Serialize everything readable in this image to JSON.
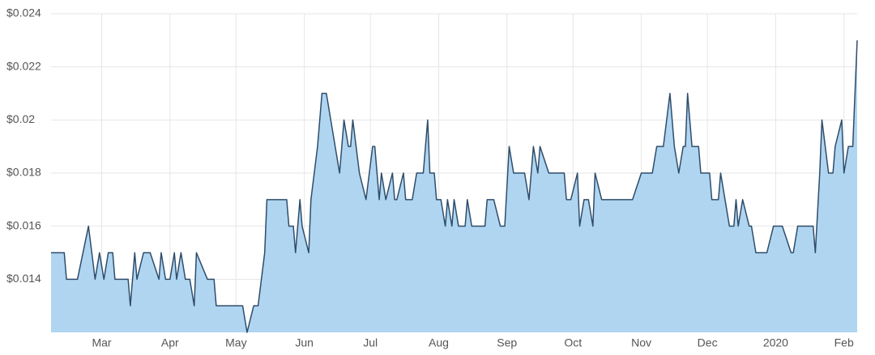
{
  "chart_data": {
    "type": "area",
    "x": [
      0,
      6,
      7,
      12,
      17,
      20,
      22,
      24,
      26,
      28,
      29,
      35,
      36,
      38,
      39,
      42,
      45,
      49,
      50,
      52,
      54,
      56,
      57,
      59,
      61,
      63,
      65,
      66,
      71,
      74,
      75,
      87,
      89,
      92,
      94,
      97,
      98,
      107,
      108,
      110,
      111,
      113,
      114,
      117,
      118,
      121,
      123,
      125,
      127,
      131,
      133,
      135,
      136,
      137,
      140,
      143,
      146,
      147,
      149,
      150,
      152,
      155,
      156,
      157,
      160,
      161,
      164,
      166,
      169,
      171,
      172,
      174,
      175,
      177,
      179,
      180,
      182,
      183,
      185,
      188,
      189,
      191,
      197,
      198,
      201,
      204,
      206,
      208,
      210,
      215,
      217,
      219,
      221,
      222,
      226,
      233,
      234,
      236,
      239,
      240,
      242,
      244,
      246,
      247,
      250,
      264,
      268,
      273,
      275,
      278,
      281,
      283,
      285,
      287,
      288,
      289,
      291,
      294,
      295,
      299,
      300,
      303,
      304,
      308,
      310,
      311,
      312,
      314,
      317,
      318,
      320,
      325,
      328,
      332,
      336,
      337,
      339,
      346,
      347,
      349,
      350,
      353,
      355,
      356,
      359,
      360,
      362,
      364,
      366
    ],
    "values": [
      0.015,
      0.015,
      0.014,
      0.014,
      0.016,
      0.014,
      0.015,
      0.014,
      0.015,
      0.015,
      0.014,
      0.014,
      0.013,
      0.015,
      0.014,
      0.015,
      0.015,
      0.014,
      0.015,
      0.014,
      0.014,
      0.015,
      0.014,
      0.015,
      0.014,
      0.014,
      0.013,
      0.015,
      0.014,
      0.014,
      0.013,
      0.013,
      0.012,
      0.013,
      0.013,
      0.015,
      0.017,
      0.017,
      0.016,
      0.016,
      0.015,
      0.017,
      0.016,
      0.015,
      0.017,
      0.019,
      0.021,
      0.021,
      0.02,
      0.018,
      0.02,
      0.019,
      0.019,
      0.02,
      0.018,
      0.017,
      0.019,
      0.019,
      0.017,
      0.018,
      0.017,
      0.018,
      0.017,
      0.017,
      0.018,
      0.017,
      0.017,
      0.018,
      0.018,
      0.02,
      0.018,
      0.018,
      0.017,
      0.017,
      0.016,
      0.017,
      0.016,
      0.017,
      0.016,
      0.016,
      0.017,
      0.016,
      0.016,
      0.017,
      0.017,
      0.016,
      0.016,
      0.019,
      0.018,
      0.018,
      0.017,
      0.019,
      0.018,
      0.019,
      0.018,
      0.018,
      0.017,
      0.017,
      0.018,
      0.016,
      0.017,
      0.017,
      0.016,
      0.018,
      0.017,
      0.017,
      0.018,
      0.018,
      0.019,
      0.019,
      0.021,
      0.019,
      0.018,
      0.019,
      0.019,
      0.021,
      0.019,
      0.019,
      0.018,
      0.018,
      0.017,
      0.017,
      0.018,
      0.016,
      0.016,
      0.017,
      0.016,
      0.017,
      0.016,
      0.016,
      0.015,
      0.015,
      0.016,
      0.016,
      0.015,
      0.015,
      0.016,
      0.016,
      0.015,
      0.018,
      0.02,
      0.018,
      0.018,
      0.019,
      0.02,
      0.018,
      0.019,
      0.019,
      0.023
    ],
    "color": "#2e4d6b",
    "fill": "#b0d5f1",
    "xlim": [
      0,
      366
    ],
    "xticks": [
      {
        "value": 23,
        "label": "Mar"
      },
      {
        "value": 54,
        "label": "Apr"
      },
      {
        "value": 84,
        "label": "May"
      },
      {
        "value": 115,
        "label": "Jun"
      },
      {
        "value": 145,
        "label": "Jul"
      },
      {
        "value": 176,
        "label": "Aug"
      },
      {
        "value": 207,
        "label": "Sep"
      },
      {
        "value": 237,
        "label": "Oct"
      },
      {
        "value": 268,
        "label": "Nov"
      },
      {
        "value": 298,
        "label": "Dec"
      },
      {
        "value": 329,
        "label": "2020"
      },
      {
        "value": 360,
        "label": "Feb"
      }
    ],
    "ylim": [
      0.012,
      0.024
    ],
    "yticks": [
      {
        "value": 0.014,
        "label": "$0.014"
      },
      {
        "value": 0.016,
        "label": "$0.016"
      },
      {
        "value": 0.018,
        "label": "$0.018"
      },
      {
        "value": 0.02,
        "label": "$0.02"
      },
      {
        "value": 0.022,
        "label": "$0.022"
      },
      {
        "value": 0.024,
        "label": "$0.024"
      }
    ],
    "grid": true
  }
}
